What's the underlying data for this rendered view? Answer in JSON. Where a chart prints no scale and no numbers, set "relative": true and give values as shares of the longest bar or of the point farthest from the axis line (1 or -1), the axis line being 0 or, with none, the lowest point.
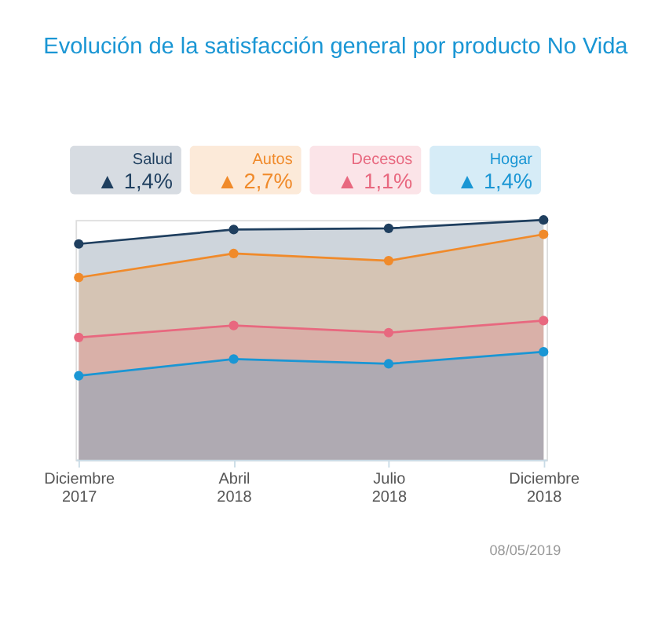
{
  "chart_data": {
    "type": "area",
    "title": "Evolución de la satisfacción general por producto No Vida",
    "relative": true,
    "categories": [
      "Diciembre 2017",
      "Abril 2018",
      "Julio 2018",
      "Diciembre 2018"
    ],
    "series": [
      {
        "name": "Salud",
        "color": "#1f3f5f",
        "values": [
          0.9,
          0.96,
          0.965,
          1
        ]
      },
      {
        "name": "Autos",
        "color": "#f08a2a",
        "values": [
          0.76,
          0.86,
          0.83,
          0.94
        ]
      },
      {
        "name": "Decesos",
        "color": "#e8687f",
        "values": [
          0.51,
          0.56,
          0.53,
          0.58
        ]
      },
      {
        "name": "Hogar",
        "color": "#1a96d4",
        "values": [
          0.35,
          0.42,
          0.4,
          0.45
        ]
      }
    ],
    "annotations": [
      "▲ 1,4%",
      "▲ 2,7%",
      "▲ 1,1%",
      "▲ 1,4%",
      "08/05/2019"
    ],
    "legend": "top",
    "marker": "circle",
    "grid": false
  }
}
